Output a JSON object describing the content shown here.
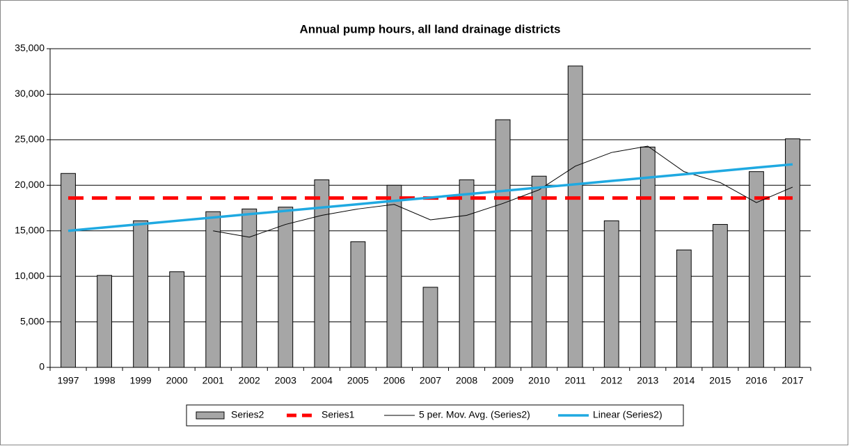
{
  "chart_data": {
    "type": "bar",
    "title": "Annual pump hours, all land drainage districts",
    "categories": [
      "1997",
      "1998",
      "1999",
      "2000",
      "2001",
      "2002",
      "2003",
      "2004",
      "2005",
      "2006",
      "2007",
      "2008",
      "2009",
      "2010",
      "2011",
      "2012",
      "2013",
      "2014",
      "2015",
      "2016",
      "2017"
    ],
    "series": [
      {
        "name": "Series2",
        "kind": "bar",
        "color": "#a6a6a6",
        "values": [
          21300,
          10100,
          16100,
          10500,
          17100,
          17400,
          17600,
          20600,
          13800,
          20000,
          8800,
          20600,
          27200,
          21000,
          33100,
          16100,
          24200,
          12900,
          15700,
          21500,
          25100
        ]
      },
      {
        "name": "Series1",
        "kind": "line",
        "color": "#ff0000",
        "width": 5,
        "dashed": true,
        "values": [
          18600,
          18600,
          18600,
          18600,
          18600,
          18600,
          18600,
          18600,
          18600,
          18600,
          18600,
          18600,
          18600,
          18600,
          18600,
          18600,
          18600,
          18600,
          18600,
          18600,
          18600
        ]
      },
      {
        "name": "5 per. Mov. Avg. (Series2)",
        "kind": "line",
        "color": "#000000",
        "width": 1,
        "dashed": false,
        "values": [
          null,
          null,
          null,
          null,
          15000,
          14300,
          15700,
          16700,
          17400,
          17900,
          16200,
          16700,
          18000,
          19500,
          22100,
          23600,
          24300,
          21500,
          20300,
          18100,
          19800
        ]
      },
      {
        "name": "Linear (Series2)",
        "kind": "line",
        "color": "#1fa9e1",
        "width": 3.5,
        "dashed": false,
        "values": [
          15000,
          15370,
          15730,
          16100,
          16460,
          16830,
          17190,
          17560,
          17920,
          18290,
          18650,
          19020,
          19380,
          19750,
          20110,
          20480,
          20840,
          21210,
          21570,
          21940,
          22300
        ]
      }
    ],
    "ylim": [
      0,
      35000
    ],
    "yticks": [
      0,
      {
        "value": 5000,
        "label": "5,000"
      },
      {
        "value": 10000,
        "label": "10,000"
      },
      {
        "value": 15000,
        "label": "15,000"
      },
      {
        "value": 20000,
        "label": "20,000"
      },
      {
        "value": 25000,
        "label": "25,000"
      },
      {
        "value": 30000,
        "label": "30,000"
      },
      {
        "value": 35000,
        "label": "35,000"
      }
    ],
    "grid": true,
    "legend": "bottom"
  }
}
